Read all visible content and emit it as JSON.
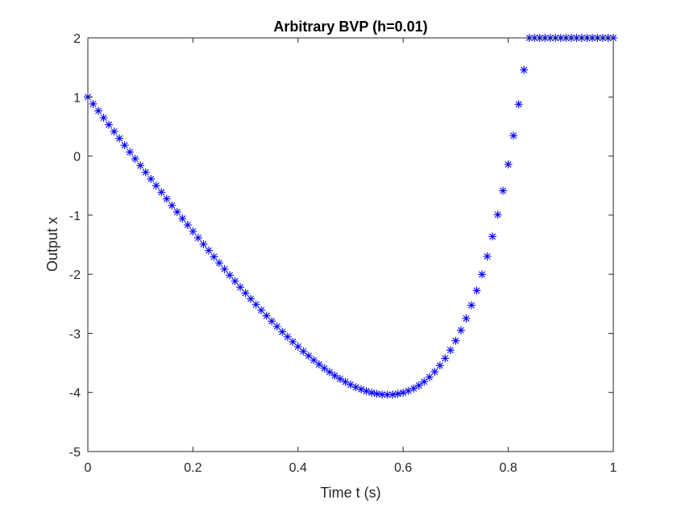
{
  "chart_data": {
    "type": "scatter",
    "title": "Arbitrary BVP (h=0.01)",
    "xlabel": "Time t (s)",
    "ylabel": "Output x",
    "xlim": [
      0,
      1
    ],
    "ylim": [
      -5,
      2
    ],
    "xticks": [
      "0",
      "0.2",
      "0.4",
      "0.6",
      "0.8",
      "1"
    ],
    "yticks": [
      "2",
      "1",
      "0",
      "-1",
      "-2",
      "-3",
      "-4",
      "-5"
    ],
    "xtick_values": [
      0,
      0.2,
      0.4,
      0.6,
      0.8,
      1
    ],
    "ytick_values": [
      2,
      1,
      0,
      -1,
      -2,
      -3,
      -4,
      -5
    ],
    "grid": false,
    "legend": "none",
    "marker": "asterisk",
    "marker_color": "#0000ff",
    "axis_color": "#262626",
    "series": [
      {
        "x": [
          0.0,
          0.01,
          0.02,
          0.03,
          0.04,
          0.05,
          0.06,
          0.07,
          0.08,
          0.09,
          0.1,
          0.11,
          0.12,
          0.13,
          0.14,
          0.15,
          0.16,
          0.17,
          0.18,
          0.19,
          0.2,
          0.21,
          0.22,
          0.23,
          0.24,
          0.25,
          0.26,
          0.27,
          0.28,
          0.29,
          0.3,
          0.31,
          0.32,
          0.33,
          0.34,
          0.35,
          0.36,
          0.37,
          0.38,
          0.39,
          0.4,
          0.41,
          0.42,
          0.43,
          0.44,
          0.45,
          0.46,
          0.47,
          0.48,
          0.49,
          0.5,
          0.51,
          0.52,
          0.53,
          0.54,
          0.55,
          0.56,
          0.57,
          0.58,
          0.59,
          0.6,
          0.61,
          0.62,
          0.63,
          0.64,
          0.65,
          0.66,
          0.67,
          0.68,
          0.69,
          0.7,
          0.71,
          0.72,
          0.73,
          0.74,
          0.75,
          0.76,
          0.77,
          0.78,
          0.79,
          0.8,
          0.81,
          0.82,
          0.83,
          0.84,
          0.85,
          0.86,
          0.87,
          0.88,
          0.89,
          0.9,
          0.91,
          0.92,
          0.93,
          0.94,
          0.95,
          0.96,
          0.97,
          0.98,
          0.99,
          1.0
        ],
        "y": [
          1.0,
          0.882,
          0.765,
          0.648,
          0.531,
          0.415,
          0.299,
          0.183,
          0.068,
          -0.046,
          -0.16,
          -0.274,
          -0.387,
          -0.5,
          -0.612,
          -0.724,
          -0.836,
          -0.946,
          -1.057,
          -1.166,
          -1.275,
          -1.384,
          -1.491,
          -1.598,
          -1.704,
          -1.809,
          -1.913,
          -2.016,
          -2.118,
          -2.219,
          -2.318,
          -2.416,
          -2.513,
          -2.609,
          -2.702,
          -2.794,
          -2.884,
          -2.973,
          -3.059,
          -3.143,
          -3.224,
          -3.304,
          -3.38,
          -3.453,
          -3.524,
          -3.591,
          -3.655,
          -3.715,
          -3.77,
          -3.822,
          -3.869,
          -3.911,
          -3.948,
          -3.979,
          -4.004,
          -4.023,
          -4.035,
          -4.039,
          -4.036,
          -4.024,
          -4.004,
          -3.973,
          -3.933,
          -3.881,
          -3.817,
          -3.741,
          -3.65,
          -3.545,
          -3.423,
          -3.284,
          -3.126,
          -2.948,
          -2.748,
          -2.525,
          -2.277,
          -2.002,
          -1.697,
          -1.361,
          -0.992,
          -0.586,
          -0.141,
          0.345,
          0.877,
          1.457,
          2.0,
          2.0,
          2.0,
          2.0,
          2.0,
          2.0,
          2.0,
          2.0,
          2.0,
          2.0,
          2.0,
          2.0,
          2.0,
          2.0,
          2.0,
          2.0,
          2.0
        ]
      }
    ]
  }
}
